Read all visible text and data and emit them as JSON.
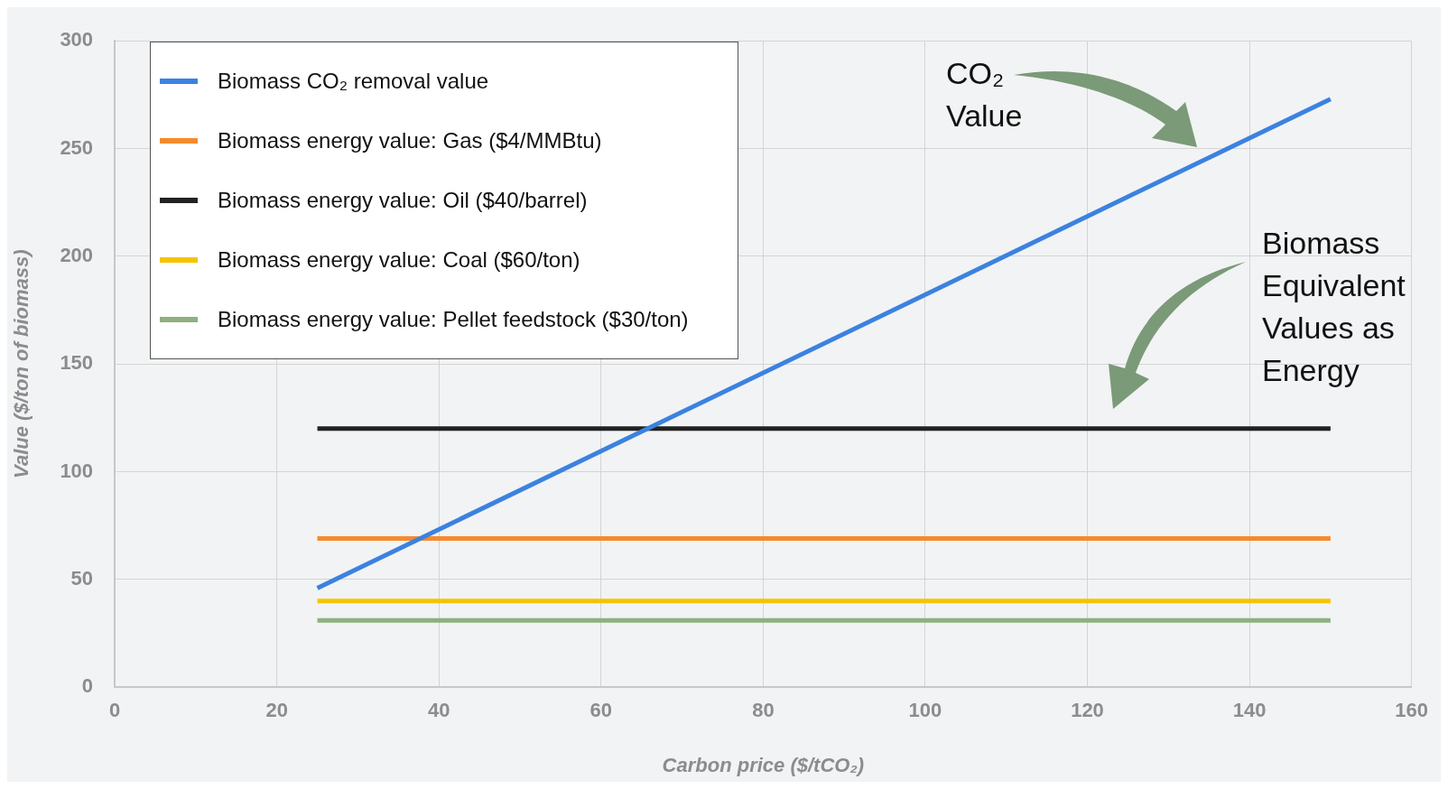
{
  "chart_data": {
    "type": "line",
    "xlabel": "Carbon price ($/tCO₂)",
    "ylabel": "Value ($/ton of biomass)",
    "xlim": [
      0,
      160
    ],
    "xticks": [
      0,
      20,
      40,
      60,
      80,
      100,
      120,
      140,
      160
    ],
    "ylim": [
      0,
      300
    ],
    "yticks": [
      0,
      50,
      100,
      150,
      200,
      250,
      300
    ],
    "x": [
      25,
      150
    ],
    "grid": true,
    "legend": "top left",
    "marker": "none",
    "line_style": "solid",
    "series": [
      {
        "name": "Biomass CO₂ removal value",
        "color": "#3b82e0",
        "values": [
          46,
          273
        ]
      },
      {
        "name": "Biomass energy value: Gas ($4/MMBtu)",
        "color": "#f58a2c",
        "values": [
          69,
          69
        ]
      },
      {
        "name": "Biomass energy value: Oil ($40/barrel)",
        "color": "#222222",
        "values": [
          120,
          120
        ]
      },
      {
        "name": "Biomass energy value: Coal ($60/ton)",
        "color": "#f5c400",
        "values": [
          40,
          40
        ]
      },
      {
        "name": "Biomass energy value: Pellet feedstock ($30/ton)",
        "color": "#8fb07e",
        "values": [
          31,
          31
        ]
      }
    ],
    "annotations": [
      "CO₂\nValue",
      "Biomass\nEquivalent\nValues as\nEnergy"
    ]
  }
}
